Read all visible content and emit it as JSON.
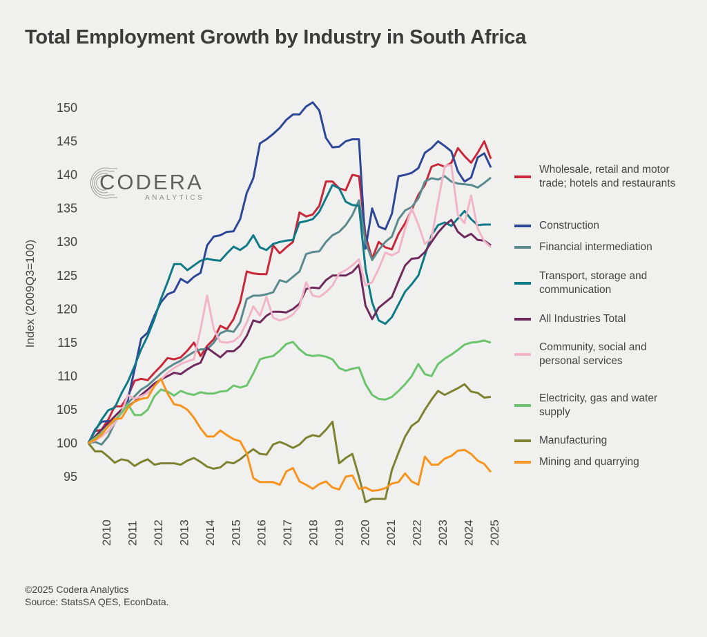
{
  "title": "Total Employment Growth by Industry in South Africa",
  "logo": {
    "name": "CODERA",
    "sub": "ANALYTICS"
  },
  "footer": {
    "copyright": "©2025 Codera Analytics",
    "source": "Source: StatsSA QES, EconData."
  },
  "chart_data": {
    "type": "line",
    "title": "Total Employment Growth by Industry in South Africa",
    "xlabel": "",
    "ylabel": "Index (2009Q3=100)",
    "x_start": "2009Q3",
    "x_end": "2024Q4",
    "frequency": "quarterly",
    "ylim": [
      91,
      152
    ],
    "yticks": [
      95,
      100,
      105,
      110,
      115,
      120,
      125,
      130,
      135,
      140,
      145,
      150
    ],
    "xticks": [
      "2010",
      "2011",
      "2012",
      "2013",
      "2014",
      "2015",
      "2016",
      "2017",
      "2018",
      "2019",
      "2020",
      "2021",
      "2022",
      "2023",
      "2024",
      "2025"
    ],
    "grid": false,
    "legend_position": "right",
    "series": [
      {
        "name": "Wholesale, retail and motor trade; hotels and restaurants",
        "color": "#c8283a",
        "values": [
          100,
          101.8,
          102,
          103.5,
          105.5,
          105.5,
          107,
          109.3,
          109.6,
          109.4,
          110.5,
          111.5,
          112.7,
          112.5,
          112.8,
          113.8,
          115,
          113,
          114.5,
          115.5,
          117.5,
          117,
          118.5,
          121,
          125.6,
          125.3,
          125.2,
          125.2,
          129.5,
          128.3,
          129.2,
          130,
          134.4,
          133.8,
          134.1,
          135.4,
          139,
          139,
          138,
          137.7,
          140,
          139.8,
          131,
          127.5,
          130,
          129.2,
          128.9,
          131.2,
          132.8,
          134.8,
          137,
          138.5,
          141.2,
          141.6,
          141.2,
          141.8,
          144,
          142.8,
          141.8,
          143.3,
          145,
          142.4
        ]
      },
      {
        "name": "Construction",
        "color": "#2e4696",
        "values": [
          100,
          102,
          103.2,
          103.3,
          103.3,
          104.5,
          106.5,
          111,
          115.6,
          116.5,
          119,
          121,
          122.2,
          122.6,
          124.5,
          123.9,
          124.8,
          125.4,
          129.5,
          130.8,
          131,
          131.5,
          131.6,
          133.4,
          137.3,
          139.5,
          144.7,
          145.3,
          146.1,
          147,
          148.2,
          149,
          149,
          150.2,
          150.8,
          149.6,
          145.5,
          144.1,
          144.2,
          145,
          145.3,
          145.3,
          129,
          135,
          132.3,
          131.9,
          134.2,
          139.8,
          140,
          140.3,
          141,
          143.3,
          144,
          145,
          144.3,
          143.5,
          140.5,
          139,
          139.6,
          142.6,
          143.2,
          141.1
        ]
      },
      {
        "name": "Financial intermediation",
        "color": "#5b8a8c",
        "values": [
          100,
          100.2,
          99.8,
          101,
          103,
          104.5,
          106,
          107,
          108,
          108.6,
          109.5,
          110.4,
          111.2,
          111.8,
          112.3,
          113,
          113.6,
          114,
          114,
          115,
          116.4,
          116.8,
          116.6,
          118,
          121.5,
          122,
          122,
          122.2,
          122.5,
          124.3,
          124,
          124.8,
          125.6,
          128.2,
          128.5,
          128.6,
          130,
          131,
          131.5,
          132.5,
          134,
          136.2,
          130,
          127.3,
          128.8,
          130,
          130.8,
          133.4,
          134.7,
          135.2,
          136.5,
          139,
          139.5,
          139.3,
          139.8,
          139,
          138.7,
          138.6,
          138.5,
          138.1,
          138.8,
          139.6
        ]
      },
      {
        "name": "Transport, storage and communication",
        "color": "#0e7a86",
        "values": [
          100,
          101.8,
          103.5,
          104.9,
          105.3,
          107.4,
          109.2,
          111.5,
          114,
          116,
          118.5,
          121.5,
          124,
          126.7,
          126.7,
          125.8,
          126.5,
          127.2,
          127.5,
          127.3,
          127.2,
          128.3,
          129.3,
          128.8,
          129.5,
          131,
          129.2,
          128.8,
          129.7,
          130,
          130.2,
          130.3,
          132.9,
          133.1,
          133.4,
          134.5,
          136.5,
          138.5,
          138,
          136,
          135.5,
          135.4,
          126,
          121,
          118.3,
          117.8,
          118.8,
          120.7,
          122.6,
          123.7,
          125,
          128,
          131,
          132.5,
          132.9,
          132.4,
          133.5,
          134.6,
          133.4,
          132.5,
          132.6,
          132.6
        ]
      },
      {
        "name": "All Industries Total",
        "color": "#6e2a5c",
        "values": [
          100,
          101,
          102,
          103,
          104,
          105,
          105.5,
          106.2,
          107.2,
          108,
          108.9,
          109.5,
          110,
          110.5,
          110.3,
          111,
          111.6,
          112,
          114.2,
          113.5,
          112.8,
          113.7,
          113.7,
          114.5,
          116,
          118.3,
          118,
          119,
          119.6,
          119.6,
          119.5,
          120,
          120.8,
          123,
          123.2,
          123.1,
          124.3,
          125,
          125,
          125,
          125.5,
          126.6,
          120.5,
          118.5,
          120.2,
          121,
          121.8,
          124.2,
          126.5,
          127.5,
          127.6,
          128.5,
          130,
          131.4,
          132.5,
          133.3,
          131.5,
          130.7,
          131.2,
          130.3,
          130.2,
          129.5
        ]
      },
      {
        "name": "Community, social and personal services",
        "color": "#f2b5c8",
        "values": [
          100,
          100.4,
          101,
          101.8,
          103,
          104.5,
          107.2,
          106.6,
          107,
          107.5,
          108.5,
          109.5,
          110.5,
          111.2,
          111.8,
          112.2,
          112.5,
          117,
          122,
          117,
          115.1,
          115,
          115.2,
          116,
          118,
          120.4,
          119,
          121.8,
          118.7,
          118.3,
          118.6,
          119.2,
          120.4,
          124,
          122,
          121.8,
          122.5,
          123.5,
          125.3,
          125.8,
          126.5,
          127.4,
          123.5,
          124,
          126,
          128.4,
          128,
          128.5,
          132,
          135,
          132.6,
          129.7,
          130.5,
          136,
          141.3,
          141.5,
          134,
          132.8,
          136.9,
          132,
          130.1,
          129.2
        ]
      },
      {
        "name": "Electricity, gas and water supply",
        "color": "#6cc46e",
        "values": [
          100,
          100.8,
          101.5,
          102.5,
          103.4,
          104.5,
          105.8,
          104.2,
          104.2,
          105,
          107,
          108,
          107.7,
          107.1,
          107.8,
          107.4,
          107.2,
          107.6,
          107.4,
          107.4,
          107.7,
          107.8,
          108.6,
          108.3,
          108.6,
          110.4,
          112.5,
          112.8,
          113,
          113.8,
          114.8,
          115.1,
          114,
          113.2,
          113,
          113.1,
          112.9,
          112.5,
          111.2,
          110.8,
          111.1,
          111.3,
          108.8,
          107.2,
          106.6,
          106.5,
          106.9,
          107.8,
          108.8,
          110,
          111.8,
          110.3,
          110,
          111.8,
          112.6,
          113.2,
          113.9,
          114.7,
          115,
          115.1,
          115.3,
          115
        ]
      },
      {
        "name": "Manufacturing",
        "color": "#7d8230",
        "values": [
          100,
          98.8,
          98.8,
          98,
          97.1,
          97.6,
          97.4,
          96.6,
          97.2,
          97.6,
          96.8,
          97,
          97,
          97,
          96.8,
          97.4,
          97.8,
          97.2,
          96.5,
          96.2,
          96.4,
          97.2,
          97,
          97.6,
          98.4,
          99.1,
          98.4,
          98.3,
          99.8,
          100.2,
          99.8,
          99.3,
          99.8,
          100.8,
          101.2,
          101,
          102,
          103.2,
          97,
          97.8,
          98.4,
          95,
          91.2,
          91.7,
          91.7,
          91.7,
          96,
          98.6,
          101,
          102.6,
          103.3,
          105,
          106.5,
          107.8,
          107.2,
          107.7,
          108.2,
          108.8,
          107.7,
          107.5,
          106.8,
          106.9
        ]
      },
      {
        "name": "Mining and quarrying",
        "color": "#f7941d",
        "values": [
          100,
          100.5,
          101.3,
          102.5,
          103.6,
          103.7,
          105.3,
          106.2,
          106.6,
          106.8,
          108.5,
          109.6,
          107.4,
          105.8,
          105.6,
          105,
          103.8,
          102.2,
          101,
          101,
          101.9,
          101.2,
          100.6,
          100.3,
          98.5,
          94.8,
          94.2,
          94.2,
          94.2,
          93.8,
          95.8,
          96.3,
          94.3,
          93.8,
          93.2,
          93.9,
          94.3,
          93.4,
          93.1,
          95,
          95.2,
          93.2,
          93.4,
          92.9,
          93,
          93.3,
          94,
          94.2,
          95.5,
          94.3,
          93.8,
          98,
          96.8,
          96.8,
          97.7,
          98.1,
          98.9,
          99,
          98.4,
          97.4,
          96.9,
          95.7
        ]
      }
    ]
  }
}
